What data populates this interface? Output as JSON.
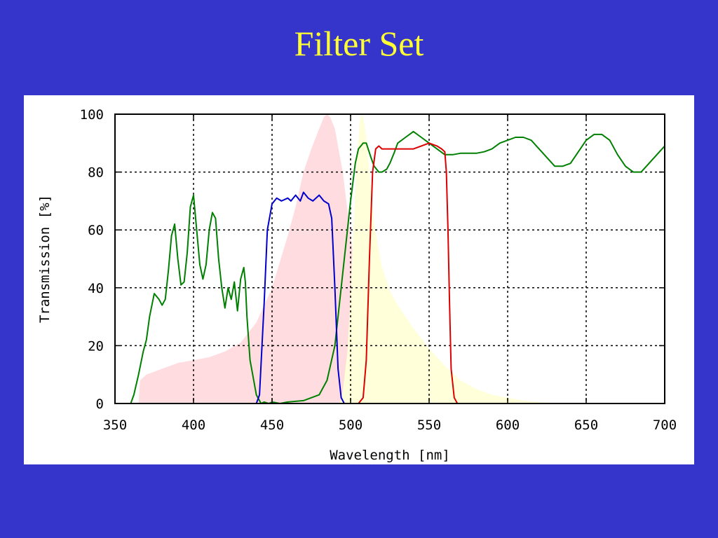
{
  "slide": {
    "title": "Filter Set"
  },
  "chart_data": {
    "type": "line",
    "title": "",
    "xlabel": "Wavelength [nm]",
    "ylabel": "Transmission [%]",
    "xlim": [
      350,
      700
    ],
    "ylim": [
      0,
      100
    ],
    "xticks": [
      350,
      400,
      450,
      500,
      550,
      600,
      650,
      700
    ],
    "yticks": [
      0,
      20,
      40,
      60,
      80,
      100
    ],
    "grid": true,
    "grid_style": "dotted",
    "legend": "none",
    "series": [
      {
        "kind": "area",
        "color": "#ffdce0",
        "x": [
          365,
          366,
          370,
          380,
          390,
          400,
          410,
          420,
          430,
          440,
          450,
          460,
          465,
          470,
          475,
          480,
          483,
          485,
          487,
          490,
          495,
          500,
          505,
          510,
          515,
          520,
          525,
          530,
          533,
          535
        ],
        "y": [
          0,
          8,
          10,
          12,
          14,
          15,
          16,
          18,
          21,
          28,
          40,
          58,
          68,
          80,
          88,
          95,
          99,
          100,
          99,
          95,
          80,
          58,
          38,
          22,
          12,
          6,
          3,
          1,
          0.5,
          0
        ]
      },
      {
        "kind": "area",
        "color": "#ffffd9",
        "x": [
          493,
          495,
          498,
          500,
          502,
          504,
          506,
          507,
          508,
          510,
          512,
          515,
          520,
          525,
          530,
          540,
          550,
          560,
          570,
          580,
          590,
          600,
          610,
          620,
          630,
          640
        ],
        "y": [
          0,
          4,
          18,
          38,
          62,
          85,
          98,
          100,
          99,
          92,
          80,
          62,
          47,
          39,
          34,
          26,
          19,
          13,
          8,
          5,
          3,
          2,
          1,
          0.5,
          0.2,
          0
        ]
      },
      {
        "kind": "line",
        "color": "#008000",
        "x": [
          350,
          355,
          360,
          362,
          365,
          368,
          370,
          372,
          375,
          378,
          380,
          382,
          384,
          386,
          388,
          390,
          392,
          394,
          396,
          398,
          400,
          402,
          404,
          406,
          408,
          410,
          412,
          414,
          416,
          418,
          420,
          422,
          424,
          426,
          428,
          430,
          432,
          433,
          434,
          436,
          440,
          443,
          445,
          448,
          450,
          455,
          460,
          470,
          480,
          485,
          490,
          495,
          500,
          503,
          505,
          508,
          510,
          513,
          515,
          518,
          520,
          523,
          525,
          528,
          530,
          535,
          540,
          545,
          550,
          555,
          560,
          565,
          570,
          575,
          580,
          585,
          590,
          595,
          600,
          605,
          610,
          615,
          620,
          625,
          630,
          635,
          640,
          645,
          650,
          655,
          660,
          665,
          670,
          675,
          680,
          685,
          690,
          695,
          700
        ],
        "y": [
          0,
          0,
          0,
          3,
          10,
          18,
          22,
          30,
          38,
          36,
          34,
          36,
          46,
          58,
          62,
          50,
          41,
          42,
          52,
          68,
          72,
          60,
          48,
          43,
          48,
          60,
          66,
          64,
          50,
          40,
          33,
          40,
          36,
          42,
          32,
          43,
          47,
          42,
          30,
          15,
          3,
          0,
          0.5,
          0,
          0.5,
          0,
          0.5,
          1,
          3,
          8,
          20,
          45,
          70,
          83,
          88,
          90,
          90,
          85,
          82,
          80,
          80,
          81,
          83,
          87,
          90,
          92,
          94,
          92,
          90,
          88,
          86,
          86,
          86.5,
          86.5,
          86.5,
          87,
          88,
          90,
          91,
          92,
          92,
          91,
          88,
          85,
          82,
          82,
          83,
          87,
          91,
          93,
          93,
          91,
          86,
          82,
          80,
          80,
          83,
          86,
          89
        ]
      },
      {
        "kind": "line",
        "color": "#0000cc",
        "x": [
          350,
          440,
          442,
          445,
          447,
          450,
          453,
          456,
          460,
          462,
          465,
          468,
          470,
          473,
          476,
          480,
          483,
          486,
          488,
          490,
          492,
          494,
          496,
          500,
          700
        ],
        "y": [
          0,
          0,
          3,
          35,
          60,
          69,
          71,
          70,
          71,
          70,
          72,
          70,
          73,
          71,
          70,
          72,
          70,
          69,
          64,
          40,
          12,
          2,
          0,
          0,
          0
        ]
      },
      {
        "kind": "line",
        "color": "#dd0000",
        "x": [
          350,
          505,
          508,
          510,
          512,
          514,
          516,
          518,
          520,
          525,
          530,
          535,
          540,
          545,
          550,
          555,
          558,
          560,
          561,
          562,
          563,
          564,
          566,
          568,
          570,
          700
        ],
        "y": [
          0,
          0,
          2,
          15,
          50,
          80,
          88,
          89,
          88,
          88,
          88,
          88,
          88,
          89,
          90,
          89,
          88,
          87,
          80,
          60,
          35,
          12,
          2,
          0,
          0,
          0
        ]
      }
    ]
  }
}
